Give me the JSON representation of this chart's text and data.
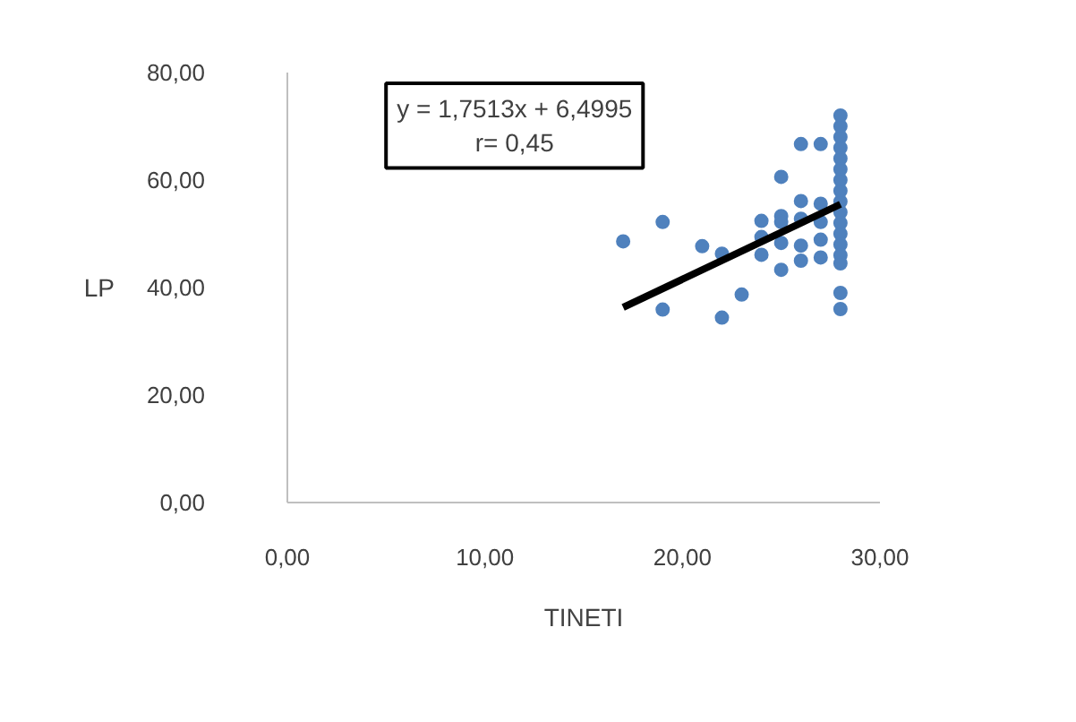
{
  "chart_data": {
    "type": "scatter",
    "xlabel": "TINETI",
    "ylabel": "LP",
    "annotations": [
      "y = 1,7513x + 6,4995",
      "r= 0,45"
    ],
    "series": [
      {
        "color": "#4f81bd",
        "marker": "circle",
        "x": [
          17,
          19,
          19,
          21,
          22,
          22,
          23,
          24,
          24,
          24,
          25,
          25,
          25,
          25,
          25,
          26,
          26,
          26,
          26,
          26,
          27,
          27,
          27,
          27,
          27,
          28,
          28,
          28,
          28,
          28,
          28,
          28,
          28,
          28,
          28,
          28,
          28,
          28,
          28,
          28,
          28,
          28
        ],
        "values": [
          48.6,
          52.2,
          35.9,
          47.7,
          46.3,
          34.4,
          38.7,
          52.4,
          49.4,
          46.1,
          60.6,
          53.3,
          52.2,
          48.3,
          43.3,
          66.7,
          56.1,
          52.8,
          47.8,
          45,
          66.7,
          55.6,
          52.2,
          48.9,
          45.6,
          72,
          70,
          68,
          66,
          64,
          62,
          60,
          58,
          56,
          54,
          52,
          50,
          48,
          46,
          44.5,
          39,
          36
        ]
      },
      {
        "type": "line",
        "color": "#000000",
        "x": [
          17,
          28
        ],
        "values": [
          36.3,
          55.5
        ]
      }
    ],
    "xlim": [
      0,
      30
    ],
    "ylim": [
      0,
      80
    ],
    "xticks": [
      {
        "value": 0,
        "label": "0,00"
      },
      {
        "value": 10,
        "label": "10,00"
      },
      {
        "value": 20,
        "label": "20,00"
      },
      {
        "value": 30,
        "label": "30,00"
      }
    ],
    "yticks": [
      {
        "value": 0,
        "label": "0,00"
      },
      {
        "value": 20,
        "label": "20,00"
      },
      {
        "value": 40,
        "label": "40,00"
      },
      {
        "value": 60,
        "label": "60,00"
      },
      {
        "value": 80,
        "label": "80,00"
      }
    ],
    "grid": false
  }
}
